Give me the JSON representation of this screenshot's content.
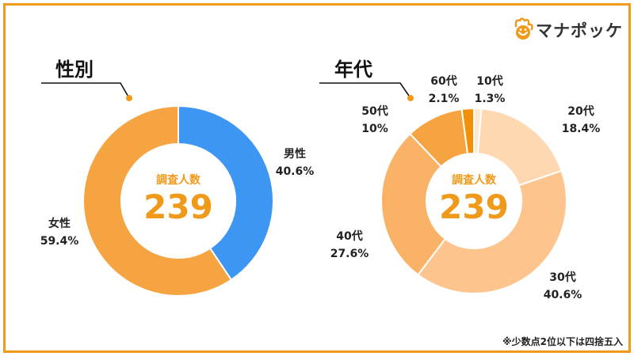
{
  "brand": {
    "name": "マナポッケ",
    "icon": "brand-mascot-icon"
  },
  "footnote": "※少数点2位以下は四捨五入",
  "colors": {
    "frame": "#ef9a1a",
    "accent": "#ef9a1a",
    "text": "#222222"
  },
  "chart_data": [
    {
      "type": "pie",
      "title": "性別",
      "center_label": "調査人数",
      "center_value": "239",
      "slices": [
        {
          "label": "男性",
          "value": 40.6,
          "value_label": "40.6%",
          "color": "#3d97f2"
        },
        {
          "label": "女性",
          "value": 59.4,
          "value_label": "59.4%",
          "color": "#f6a441"
        }
      ]
    },
    {
      "type": "pie",
      "title": "年代",
      "center_label": "調査人数",
      "center_value": "239",
      "slices": [
        {
          "label": "10代",
          "value": 1.3,
          "value_label": "1.3%",
          "color": "#fde8d2"
        },
        {
          "label": "20代",
          "value": 18.4,
          "value_label": "18.4%",
          "color": "#fdd8b0"
        },
        {
          "label": "30代",
          "value": 40.6,
          "value_label": "40.6%",
          "color": "#fdc58d"
        },
        {
          "label": "40代",
          "value": 27.6,
          "value_label": "27.6%",
          "color": "#f9b266"
        },
        {
          "label": "50代",
          "value": 10,
          "value_label": "10%",
          "color": "#f6a441"
        },
        {
          "label": "60代",
          "value": 2.1,
          "value_label": "2.1%",
          "color": "#f29107"
        }
      ]
    }
  ]
}
